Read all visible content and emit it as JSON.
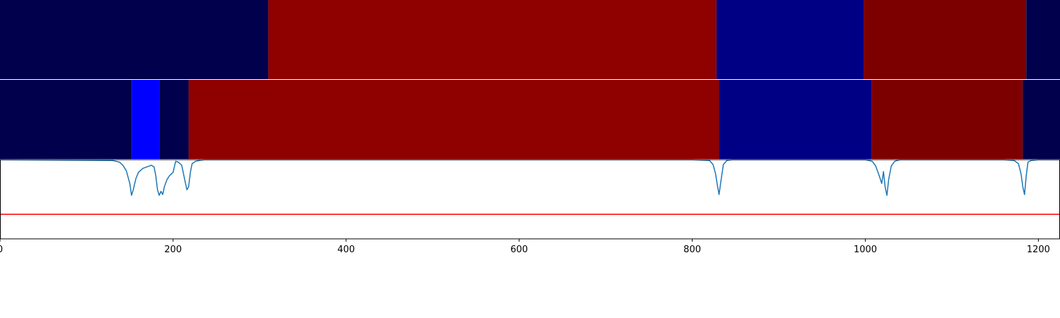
{
  "chart_data": {
    "type": "heatmap",
    "title": "",
    "xlabel": "",
    "ylabel": "",
    "xlim": [
      0,
      1225
    ],
    "grid": false,
    "legend": "none",
    "x_ticks": [
      0,
      200,
      400,
      600,
      800,
      1000,
      1200
    ],
    "x_tick_labels": [
      "0",
      "200",
      "400",
      "600",
      "800",
      "1000",
      "1200"
    ],
    "segment_tracks": [
      {
        "segments": [
          {
            "start": 0,
            "end": 310,
            "color": "#00004c"
          },
          {
            "start": 310,
            "end": 828,
            "color": "#8f0000"
          },
          {
            "start": 828,
            "end": 998,
            "color": "#000084"
          },
          {
            "start": 998,
            "end": 1186,
            "color": "#7d0000"
          },
          {
            "start": 1186,
            "end": 1225,
            "color": "#00004c"
          }
        ]
      },
      {
        "segments": [
          {
            "start": 0,
            "end": 152,
            "color": "#00004c"
          },
          {
            "start": 152,
            "end": 184,
            "color": "#0000ff"
          },
          {
            "start": 184,
            "end": 218,
            "color": "#00004c"
          },
          {
            "start": 218,
            "end": 831,
            "color": "#8f0000"
          },
          {
            "start": 831,
            "end": 1007,
            "color": "#000084"
          },
          {
            "start": 1007,
            "end": 1182,
            "color": "#7d0000"
          },
          {
            "start": 1182,
            "end": 1225,
            "color": "#00004c"
          }
        ]
      }
    ],
    "line_panel": {
      "ylim": [
        0,
        1
      ],
      "threshold": {
        "value": 0.31,
        "color": "#ff0000"
      },
      "line_color": "#1f77b4",
      "series": [
        {
          "x": [
            0,
            130,
            138,
            142,
            146,
            150,
            152,
            154,
            157,
            160,
            165,
            170,
            175,
            178,
            180,
            182,
            184,
            186,
            188,
            190,
            193,
            196,
            200,
            203,
            206,
            210,
            214,
            216,
            218,
            220,
            222,
            226,
            230,
            236,
            240,
            800,
            820,
            824,
            827,
            829,
            831,
            833,
            836,
            840,
            846,
            1000,
            1008,
            1012,
            1016,
            1019,
            1021,
            1023,
            1025,
            1027,
            1030,
            1034,
            1040,
            1160,
            1172,
            1177,
            1180,
            1182,
            1184,
            1186,
            1188,
            1192,
            1200,
            1225
          ],
          "y": [
            1.0,
            0.99,
            0.97,
            0.93,
            0.86,
            0.7,
            0.55,
            0.62,
            0.76,
            0.84,
            0.89,
            0.91,
            0.93,
            0.91,
            0.8,
            0.62,
            0.55,
            0.6,
            0.56,
            0.66,
            0.75,
            0.8,
            0.84,
            0.98,
            0.97,
            0.93,
            0.72,
            0.62,
            0.66,
            0.84,
            0.95,
            0.98,
            0.99,
            1.0,
            1.0,
            1.0,
            0.99,
            0.94,
            0.82,
            0.68,
            0.56,
            0.72,
            0.94,
            0.99,
            1.0,
            1.0,
            0.98,
            0.92,
            0.8,
            0.7,
            0.85,
            0.65,
            0.55,
            0.75,
            0.92,
            0.98,
            1.0,
            1.0,
            0.99,
            0.95,
            0.82,
            0.66,
            0.56,
            0.8,
            0.97,
            0.99,
            1.0,
            1.0
          ]
        }
      ]
    }
  }
}
